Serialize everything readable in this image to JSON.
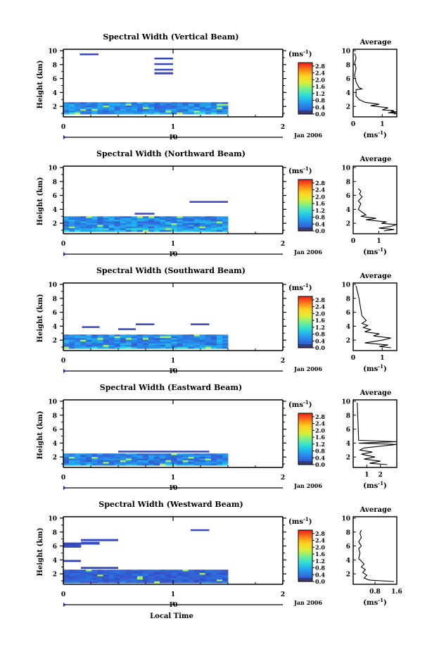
{
  "figure": {
    "x_axis_label": "Local Time",
    "date_label": "Jan 2006",
    "y_axis_label": "Height (km)",
    "unit_label": "(ms",
    "unit_exponent": "-1",
    "profile_title": "Average",
    "colorbar_ticks": [
      "0.0",
      "0.4",
      "0.8",
      "1.2",
      "1.6",
      "2.0",
      "2.4",
      "2.8"
    ]
  },
  "chart_data": [
    {
      "type": "heatmap",
      "title": "Spectral Width (Vertical Beam)",
      "xlim": [
        0,
        2
      ],
      "ylim": [
        0.5,
        10.2
      ],
      "x_ticks": [
        "0",
        "1",
        "2"
      ],
      "x_minor": [
        "10"
      ],
      "y_ticks": [
        "2",
        "4",
        "6",
        "8",
        "10"
      ],
      "colorbar": {
        "min": 0,
        "max": 3.0,
        "ticks": [
          "0.0",
          "0.4",
          "0.8",
          "1.2",
          "1.6",
          "2.0",
          "2.4",
          "2.8"
        ]
      },
      "echoes": [
        {
          "t0": 0.15,
          "t1": 0.32,
          "h0": 9.4,
          "h1": 9.6,
          "v": 0.05
        },
        {
          "t0": 0.83,
          "t1": 1.0,
          "h0": 8.8,
          "h1": 9.0,
          "v": 0.05
        },
        {
          "t0": 0.83,
          "t1": 1.0,
          "h0": 8.0,
          "h1": 8.2,
          "v": 0.05
        },
        {
          "t0": 0.83,
          "t1": 1.0,
          "h0": 7.2,
          "h1": 7.4,
          "v": 0.05
        },
        {
          "t0": 0.83,
          "t1": 1.0,
          "h0": 6.6,
          "h1": 6.9,
          "v": 0.05
        },
        {
          "t0": 0.0,
          "t1": 1.5,
          "h0": 0.9,
          "h1": 2.6,
          "v": 0.7
        }
      ],
      "profile": {
        "xlim": [
          0,
          1.5
        ],
        "x_ticks": [
          "0",
          "1"
        ],
        "ylim": [
          0.5,
          10.2
        ],
        "y_ticks": [
          "2",
          "4",
          "6",
          "8",
          "10"
        ],
        "x": [
          1.4,
          1.5,
          1.2,
          1.5,
          1.3,
          1.4,
          1.0,
          1.2,
          0.6,
          0.9,
          0.4,
          0.3,
          0.2,
          0.1,
          0.1,
          0.1,
          0.3,
          0.2,
          0.1,
          0.05,
          0.1,
          0.05,
          0.1,
          0.05
        ],
        "y": [
          0.9,
          1.0,
          1.1,
          1.2,
          1.3,
          1.4,
          1.5,
          1.8,
          2.1,
          2.3,
          2.6,
          2.8,
          3.0,
          3.5,
          4.2,
          4.4,
          4.5,
          4.7,
          5.5,
          6.5,
          7.5,
          8.2,
          9.0,
          9.6
        ]
      }
    },
    {
      "type": "heatmap",
      "title": "Spectral Width (Northward Beam)",
      "xlim": [
        0,
        2
      ],
      "ylim": [
        0.5,
        10.2
      ],
      "x_ticks": [
        "0",
        "1",
        "2"
      ],
      "x_minor": [
        "10"
      ],
      "y_ticks": [
        "2",
        "4",
        "6",
        "8",
        "10"
      ],
      "colorbar": {
        "min": 0,
        "max": 3.0,
        "ticks": [
          "0.0",
          "0.4",
          "0.8",
          "1.2",
          "1.6",
          "2.0",
          "2.4",
          "2.8"
        ]
      },
      "echoes": [
        {
          "t0": 0.65,
          "t1": 0.83,
          "h0": 3.3,
          "h1": 3.5,
          "v": 0.05
        },
        {
          "t0": 1.15,
          "t1": 1.5,
          "h0": 5.0,
          "h1": 5.2,
          "v": 0.05
        },
        {
          "t0": 0.0,
          "t1": 1.5,
          "h0": 0.8,
          "h1": 3.0,
          "v": 0.7
        }
      ],
      "profile": {
        "xlim": [
          0,
          1.7
        ],
        "x_ticks": [
          "0",
          "1"
        ],
        "ylim": [
          0.5,
          10.2
        ],
        "y_ticks": [
          "2",
          "4",
          "6",
          "8",
          "10"
        ],
        "x": [
          1.2,
          1.6,
          1.0,
          1.4,
          1.7,
          1.1,
          1.3,
          0.5,
          0.9,
          0.3,
          0.5,
          0.2,
          0.3,
          0.2,
          0.35,
          0.25,
          0.3,
          0.2
        ],
        "y": [
          0.9,
          1.1,
          1.3,
          1.5,
          1.8,
          2.0,
          2.2,
          2.5,
          2.7,
          3.0,
          3.2,
          4.0,
          4.8,
          5.2,
          5.8,
          6.2,
          6.6,
          7.0
        ]
      }
    },
    {
      "type": "heatmap",
      "title": "Spectral Width (Southward Beam)",
      "xlim": [
        0,
        2
      ],
      "ylim": [
        0.5,
        10.2
      ],
      "x_ticks": [
        "0",
        "1",
        "2"
      ],
      "x_minor": [
        "10"
      ],
      "y_ticks": [
        "2",
        "4",
        "6",
        "8",
        "10"
      ],
      "colorbar": {
        "min": 0,
        "max": 3.0,
        "ticks": [
          "0.0",
          "0.4",
          "0.8",
          "1.2",
          "1.6",
          "2.0",
          "2.4",
          "2.8"
        ]
      },
      "echoes": [
        {
          "t0": 0.17,
          "t1": 0.33,
          "h0": 3.8,
          "h1": 4.0,
          "v": 0.05
        },
        {
          "t0": 0.5,
          "t1": 0.66,
          "h0": 3.5,
          "h1": 3.7,
          "v": 0.05
        },
        {
          "t0": 0.66,
          "t1": 0.83,
          "h0": 4.2,
          "h1": 4.4,
          "v": 0.05
        },
        {
          "t0": 1.16,
          "t1": 1.33,
          "h0": 4.2,
          "h1": 4.4,
          "v": 0.05
        },
        {
          "t0": 0.0,
          "t1": 1.5,
          "h0": 0.8,
          "h1": 2.8,
          "v": 0.7
        }
      ],
      "profile": {
        "xlim": [
          0,
          1.5
        ],
        "x_ticks": [
          "0",
          "1"
        ],
        "ylim": [
          0.5,
          10.2
        ],
        "y_ticks": [
          "2",
          "4",
          "6",
          "8",
          "10"
        ],
        "x": [
          1.3,
          0.9,
          1.2,
          0.4,
          1.0,
          1.3,
          0.7,
          0.9,
          0.4,
          0.6,
          0.35,
          0.5,
          0.3,
          0.45,
          0.3,
          0.2,
          0.1
        ],
        "y": [
          0.9,
          1.1,
          1.3,
          1.6,
          2.0,
          2.3,
          2.6,
          2.9,
          3.2,
          3.5,
          3.8,
          4.1,
          4.4,
          4.8,
          5.5,
          8.0,
          9.8
        ]
      }
    },
    {
      "type": "heatmap",
      "title": "Spectral Width (Eastward Beam)",
      "xlim": [
        0,
        2
      ],
      "ylim": [
        0.5,
        10.2
      ],
      "x_ticks": [
        "0",
        "1",
        "2"
      ],
      "x_minor": [
        "10"
      ],
      "y_ticks": [
        "2",
        "4",
        "6",
        "8",
        "10"
      ],
      "colorbar": {
        "min": 0,
        "max": 3.0,
        "ticks": [
          "0.0",
          "0.4",
          "0.8",
          "1.2",
          "1.6",
          "2.0",
          "2.4",
          "2.8"
        ]
      },
      "echoes": [
        {
          "t0": 0.5,
          "t1": 1.33,
          "h0": 2.7,
          "h1": 2.9,
          "v": 0.05
        },
        {
          "t0": 0.0,
          "t1": 1.5,
          "h0": 0.8,
          "h1": 2.5,
          "v": 0.6
        }
      ],
      "profile": {
        "xlim": [
          0,
          3.2
        ],
        "x_ticks": [
          "1",
          "2"
        ],
        "ylim": [
          0.5,
          10.2
        ],
        "y_ticks": [
          "2",
          "4",
          "6",
          "8",
          "10"
        ],
        "x": [
          2.5,
          1.2,
          2.0,
          0.8,
          1.6,
          0.6,
          1.4,
          0.5,
          0.8,
          3.2,
          0.4,
          3.2,
          0.4,
          0.3
        ],
        "y": [
          0.9,
          1.1,
          1.4,
          1.7,
          2.0,
          2.4,
          2.7,
          3.0,
          3.3,
          3.8,
          4.0,
          4.2,
          4.4,
          9.8
        ]
      }
    },
    {
      "type": "heatmap",
      "title": "Spectral Width (Westward Beam)",
      "xlim": [
        0,
        2
      ],
      "ylim": [
        0.5,
        10.2
      ],
      "x_ticks": [
        "0",
        "1",
        "2"
      ],
      "x_minor": [
        "10"
      ],
      "y_ticks": [
        "2",
        "4",
        "6",
        "8",
        "10"
      ],
      "colorbar": {
        "min": 0,
        "max": 3.0,
        "ticks": [
          "0.0",
          "0.4",
          "0.8",
          "1.2",
          "1.6",
          "2.0",
          "2.4",
          "2.8"
        ]
      },
      "echoes": [
        {
          "t0": 0.0,
          "t1": 0.16,
          "h0": 5.8,
          "h1": 6.5,
          "v": 0.1
        },
        {
          "t0": 0.16,
          "t1": 0.33,
          "h0": 6.2,
          "h1": 6.6,
          "v": 0.1
        },
        {
          "t0": 0.16,
          "t1": 0.5,
          "h0": 6.7,
          "h1": 7.0,
          "v": 0.1
        },
        {
          "t0": 0.0,
          "t1": 0.16,
          "h0": 3.7,
          "h1": 4.0,
          "v": 0.1
        },
        {
          "t0": 1.16,
          "t1": 1.33,
          "h0": 8.2,
          "h1": 8.4,
          "v": 0.05
        },
        {
          "t0": 0.16,
          "t1": 0.5,
          "h0": 2.7,
          "h1": 3.0,
          "v": 0.1
        },
        {
          "t0": 0.0,
          "t1": 1.5,
          "h0": 0.7,
          "h1": 2.6,
          "v": 0.3
        }
      ],
      "profile": {
        "xlim": [
          0,
          1.6
        ],
        "x_ticks": [
          "0.8",
          "1.6"
        ],
        "ylim": [
          0.5,
          10.2
        ],
        "y_ticks": [
          "2",
          "4",
          "6",
          "8",
          "10"
        ],
        "x": [
          1.5,
          0.6,
          0.4,
          0.5,
          0.35,
          0.45,
          0.3,
          0.4,
          0.3,
          0.2,
          0.25,
          0.2,
          0.3,
          0.2,
          0.3,
          0.25,
          0.3
        ],
        "y": [
          0.9,
          1.1,
          1.4,
          1.8,
          2.2,
          2.6,
          3.0,
          3.4,
          3.8,
          4.2,
          5.0,
          5.6,
          6.0,
          6.6,
          7.2,
          7.8,
          8.3
        ]
      }
    }
  ]
}
